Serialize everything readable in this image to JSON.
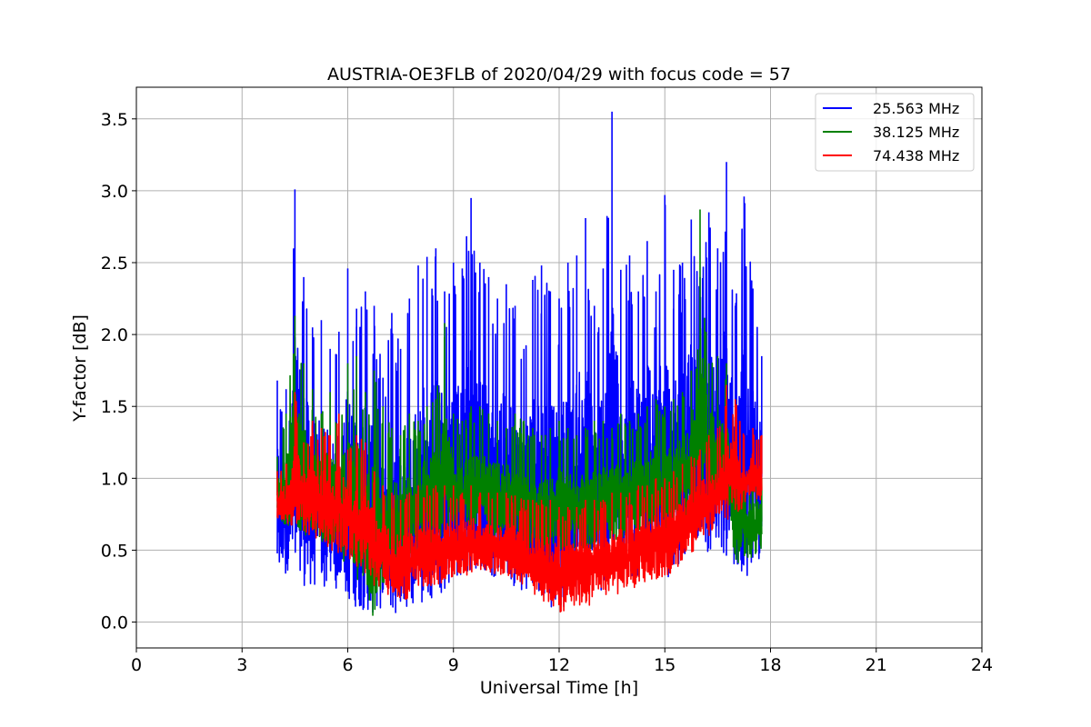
{
  "chart_data": {
    "type": "line",
    "title": "AUSTRIA-OE3FLB of 2020/04/29 with focus code = 57",
    "xlabel": "Universal Time [h]",
    "ylabel": "Y-factor [dB]",
    "xlim": [
      0,
      24
    ],
    "ylim": [
      -0.18,
      3.72
    ],
    "xticks": [
      "0",
      "3",
      "6",
      "9",
      "12",
      "15",
      "18",
      "21",
      "24"
    ],
    "yticks": [
      "0.0",
      "0.5",
      "1.0",
      "1.5",
      "2.0",
      "2.5",
      "3.0",
      "3.5"
    ],
    "grid": true,
    "legend_position": "top-right",
    "series": [
      {
        "name": "25.563 MHz",
        "color": "#0000ff",
        "x": [
          4.0,
          4.25,
          4.5,
          4.75,
          5.0,
          5.25,
          5.5,
          5.75,
          6.0,
          6.25,
          6.5,
          6.75,
          7.0,
          7.25,
          7.5,
          7.75,
          8.0,
          8.25,
          8.5,
          8.75,
          9.0,
          9.25,
          9.5,
          9.75,
          10.0,
          10.25,
          10.5,
          10.75,
          11.0,
          11.25,
          11.5,
          11.75,
          12.0,
          12.25,
          12.5,
          12.75,
          13.0,
          13.25,
          13.5,
          13.75,
          14.0,
          14.25,
          14.5,
          14.75,
          15.0,
          15.25,
          15.5,
          15.75,
          16.0,
          16.25,
          16.5,
          16.75,
          17.0,
          17.25,
          17.5,
          17.75
        ],
        "y_low": [
          0.35,
          0.3,
          0.28,
          0.25,
          0.25,
          0.23,
          0.22,
          0.2,
          0.15,
          0.1,
          0.08,
          0.05,
          0.02,
          0.05,
          0.05,
          0.08,
          0.1,
          0.12,
          0.15,
          0.2,
          0.25,
          0.28,
          0.3,
          0.32,
          0.32,
          0.3,
          0.28,
          0.25,
          0.2,
          0.18,
          0.12,
          0.1,
          0.08,
          0.12,
          0.15,
          0.2,
          0.18,
          0.2,
          0.25,
          0.28,
          0.3,
          0.32,
          0.35,
          0.35,
          0.3,
          0.32,
          0.35,
          0.4,
          0.45,
          0.45,
          0.4,
          0.35,
          0.35,
          0.15,
          0.35,
          0.45
        ],
        "y_high": [
          1.68,
          1.62,
          3.01,
          2.4,
          2.05,
          2.1,
          1.9,
          2.02,
          2.46,
          2.18,
          2.3,
          2.2,
          1.7,
          2.15,
          1.9,
          2.25,
          2.48,
          2.54,
          2.6,
          2.3,
          2.5,
          2.46,
          2.95,
          2.5,
          2.4,
          2.25,
          2.35,
          2.2,
          1.9,
          2.38,
          2.48,
          2.3,
          2.25,
          2.5,
          2.55,
          2.81,
          2.2,
          2.46,
          3.55,
          2.45,
          2.55,
          2.3,
          2.65,
          2.3,
          2.97,
          2.45,
          2.5,
          2.8,
          2.4,
          2.85,
          2.6,
          3.2,
          2.2,
          2.96,
          2.32,
          1.85
        ]
      },
      {
        "name": "38.125 MHz",
        "color": "#008000",
        "x": [
          4.0,
          4.25,
          4.5,
          4.75,
          5.0,
          5.25,
          5.5,
          5.75,
          6.0,
          6.25,
          6.5,
          6.75,
          7.0,
          7.25,
          7.5,
          7.75,
          8.0,
          8.25,
          8.5,
          8.75,
          9.0,
          9.25,
          9.5,
          9.75,
          10.0,
          10.25,
          10.5,
          10.75,
          11.0,
          11.25,
          11.5,
          11.75,
          12.0,
          12.25,
          12.5,
          12.75,
          13.0,
          13.25,
          13.5,
          13.75,
          14.0,
          14.25,
          14.5,
          14.75,
          15.0,
          15.25,
          15.5,
          15.75,
          16.0,
          16.25,
          16.5,
          16.75,
          17.0,
          17.25,
          17.5,
          17.75
        ],
        "y_low": [
          0.7,
          0.68,
          0.65,
          0.6,
          0.6,
          0.55,
          0.5,
          0.45,
          0.4,
          0.3,
          0.15,
          0.0,
          0.25,
          0.3,
          0.35,
          0.4,
          0.5,
          0.5,
          0.55,
          0.6,
          0.65,
          0.65,
          0.65,
          0.65,
          0.6,
          0.6,
          0.6,
          0.55,
          0.5,
          0.5,
          0.45,
          0.45,
          0.5,
          0.5,
          0.5,
          0.5,
          0.5,
          0.55,
          0.55,
          0.55,
          0.6,
          0.6,
          0.6,
          0.65,
          0.65,
          0.7,
          0.7,
          0.75,
          0.8,
          0.8,
          0.85,
          0.85,
          0.4,
          0.4,
          0.45,
          0.5
        ],
        "y_high": [
          1.15,
          1.45,
          2.13,
          1.8,
          1.62,
          1.45,
          1.6,
          1.4,
          1.8,
          1.85,
          1.6,
          1.75,
          1.5,
          1.35,
          1.3,
          1.45,
          1.4,
          1.5,
          1.55,
          2.08,
          1.45,
          1.4,
          1.5,
          1.5,
          1.45,
          1.4,
          1.35,
          1.45,
          1.4,
          1.35,
          1.3,
          1.35,
          1.4,
          1.35,
          1.3,
          1.35,
          1.4,
          1.4,
          1.35,
          1.45,
          1.4,
          1.45,
          1.5,
          1.55,
          1.5,
          1.55,
          1.6,
          1.75,
          2.87,
          1.8,
          1.85,
          1.8,
          1.4,
          1.2,
          1.1,
          1.0
        ]
      },
      {
        "name": "74.438 MHz",
        "color": "#ff0000",
        "x": [
          4.0,
          4.25,
          4.5,
          4.75,
          5.0,
          5.25,
          5.5,
          5.75,
          6.0,
          6.25,
          6.5,
          6.75,
          7.0,
          7.25,
          7.5,
          7.75,
          8.0,
          8.25,
          8.5,
          8.75,
          9.0,
          9.25,
          9.5,
          9.75,
          10.0,
          10.25,
          10.5,
          10.75,
          11.0,
          11.25,
          11.5,
          11.75,
          12.0,
          12.25,
          12.5,
          12.75,
          13.0,
          13.25,
          13.5,
          13.75,
          14.0,
          14.25,
          14.5,
          14.75,
          15.0,
          15.25,
          15.5,
          15.75,
          16.0,
          16.25,
          16.5,
          16.75,
          17.0,
          17.25,
          17.5,
          17.75
        ],
        "y_low": [
          0.7,
          0.68,
          0.65,
          0.62,
          0.6,
          0.55,
          0.5,
          0.48,
          0.45,
          0.38,
          0.3,
          0.25,
          0.2,
          0.18,
          0.15,
          0.15,
          0.2,
          0.22,
          0.25,
          0.28,
          0.3,
          0.32,
          0.33,
          0.35,
          0.35,
          0.33,
          0.32,
          0.3,
          0.25,
          0.2,
          0.15,
          0.12,
          0.05,
          0.1,
          0.12,
          0.1,
          0.12,
          0.15,
          0.18,
          0.2,
          0.22,
          0.25,
          0.28,
          0.3,
          0.32,
          0.35,
          0.4,
          0.45,
          0.55,
          0.6,
          0.65,
          0.7,
          0.75,
          0.8,
          0.85,
          0.85
        ],
        "y_high": [
          1.05,
          1.1,
          1.6,
          1.25,
          1.4,
          1.35,
          1.3,
          1.45,
          1.2,
          1.3,
          1.25,
          1.05,
          0.95,
          0.9,
          0.85,
          0.9,
          0.95,
          0.95,
          0.95,
          0.95,
          0.95,
          0.9,
          0.95,
          0.9,
          0.9,
          0.9,
          0.9,
          0.88,
          0.85,
          0.85,
          0.85,
          0.85,
          0.8,
          0.8,
          0.8,
          0.85,
          0.85,
          0.85,
          0.9,
          0.9,
          0.9,
          0.95,
          0.95,
          1.0,
          1.0,
          1.05,
          1.1,
          1.15,
          1.2,
          1.3,
          1.35,
          1.65,
          1.55,
          1.3,
          1.35,
          1.3
        ]
      }
    ]
  }
}
